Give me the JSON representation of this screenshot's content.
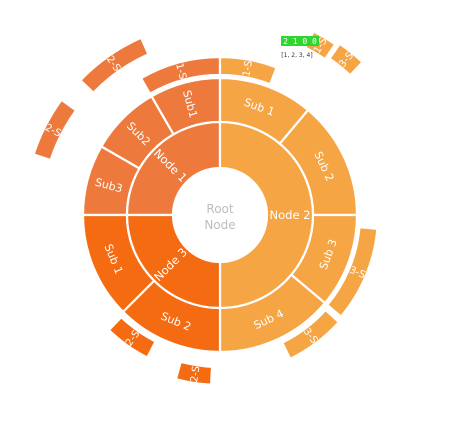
{
  "colors": {
    "node1": "#ed7a3c",
    "node2": "#f6a545",
    "node3": "#f56b12",
    "hole": "#ffffff",
    "center_text": "#bdbdbd",
    "stroke": "#ffffff",
    "badge_bg": "#2fd62f"
  },
  "center": {
    "line1": "Root",
    "line2": "Node"
  },
  "nodes": [
    {
      "id": "node1",
      "label": "Node 1",
      "children": [
        {
          "label": "Sub1",
          "children": [
            {
              "label": "Sub1-Sub1"
            }
          ]
        },
        {
          "label": "Sub2",
          "children": [
            {
              "label": "Sub2-Sub1"
            },
            {
              "label": "Sub2-Sub2"
            }
          ]
        },
        {
          "label": "Sub3",
          "children": []
        }
      ]
    },
    {
      "id": "node2",
      "label": "Node 2",
      "children": [
        {
          "label": "Sub 1",
          "children": [
            {
              "label": "Sub1-Sub1"
            }
          ]
        },
        {
          "label": "Sub 2",
          "children": [
            {
              "label": "Sub1-Sub2"
            },
            {
              "label": "Sub3-Sub1"
            }
          ]
        },
        {
          "label": "Sub 3",
          "children": [
            {
              "label": "Sub3-Sub1"
            },
            {
              "label": "Sub3-Sub2"
            }
          ]
        },
        {
          "label": "Sub 4",
          "children": []
        }
      ]
    },
    {
      "id": "node3",
      "label": "Node 3",
      "children": [
        {
          "label": "Sub 1",
          "children": []
        },
        {
          "label": "Sub 2",
          "children": [
            {
              "label": "Sub2-Sub2"
            },
            {
              "label": "Sub2-Sub1"
            }
          ]
        }
      ]
    }
  ],
  "badge": {
    "text": "2 1 0 0",
    "caption": "[1, 2, 3, 4]"
  }
}
